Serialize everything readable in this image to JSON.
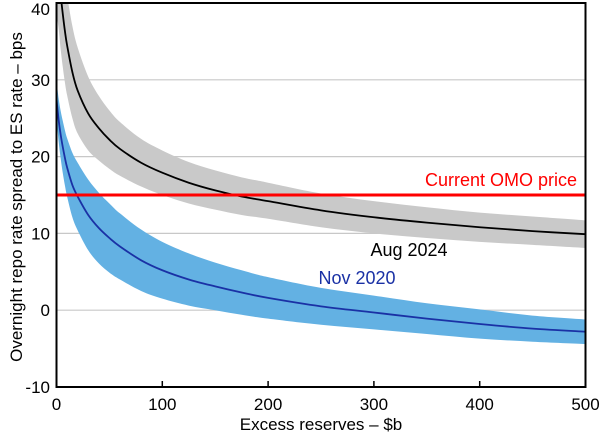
{
  "chart_data": {
    "type": "line",
    "title": "",
    "xlabel": "Excess reserves – $b",
    "ylabel": "Overnight repo rate spread to ES rate – bps",
    "xlim": [
      0,
      500
    ],
    "ylim": [
      -10,
      40
    ],
    "x_ticks": [
      0,
      100,
      200,
      300,
      400,
      500
    ],
    "y_ticks": [
      -10,
      0,
      10,
      20,
      30,
      40
    ],
    "grid": "horizontal",
    "grid_color": "#C8C8C8",
    "frame_color": "#000000",
    "background_color": "#FFFFFF",
    "legend_position": "inline-labels",
    "reference_line": {
      "label": "Current OMO price",
      "value": 15,
      "color": "#FF0000"
    },
    "series": [
      {
        "name": "Aug 2024",
        "line_color": "#000000",
        "band_color": "#C9C9C9",
        "x": [
          0,
          2,
          4,
          6,
          8,
          10,
          15,
          20,
          30,
          40,
          50,
          60,
          80,
          100,
          125,
          150,
          175,
          200,
          250,
          300,
          350,
          400,
          450,
          500
        ],
        "values": [
          46,
          44,
          41,
          38.5,
          36.3,
          34.5,
          31,
          28.6,
          25.6,
          23.7,
          22.2,
          21,
          19.2,
          17.9,
          16.6,
          15.6,
          14.8,
          14.2,
          13.0,
          12.1,
          11.4,
          10.8,
          10.3,
          9.9
        ],
        "band_upper": [
          53.5,
          51.3,
          48.1,
          45.4,
          43.0,
          41.0,
          37.0,
          34.2,
          30.4,
          27.9,
          26.0,
          24.5,
          22.3,
          20.8,
          19.3,
          18.2,
          17.3,
          16.6,
          15.2,
          14.2,
          13.4,
          12.7,
          12.2,
          11.7
        ],
        "band_lower": [
          38.5,
          36.7,
          33.9,
          31.6,
          29.6,
          28.0,
          25.0,
          23.0,
          20.8,
          19.5,
          18.4,
          17.5,
          16.1,
          15.0,
          13.9,
          13.1,
          12.4,
          11.9,
          10.8,
          10.0,
          9.4,
          8.9,
          8.5,
          8.1
        ]
      },
      {
        "name": "Nov 2020",
        "line_color": "#1A31A5",
        "band_color": "#63B1E3",
        "x": [
          0,
          2,
          4,
          6,
          8,
          10,
          15,
          20,
          30,
          40,
          50,
          60,
          80,
          100,
          125,
          150,
          175,
          200,
          250,
          300,
          350,
          400,
          450,
          500
        ],
        "values": [
          27.5,
          24.8,
          22.8,
          21.2,
          19.8,
          18.6,
          16.3,
          14.8,
          12.4,
          10.7,
          9.4,
          8.3,
          6.5,
          5.2,
          4.0,
          3.1,
          2.3,
          1.6,
          0.5,
          -0.3,
          -1.1,
          -1.8,
          -2.4,
          -2.8
        ],
        "band_upper": [
          30.0,
          27.6,
          25.9,
          24.6,
          23.4,
          22.4,
          20.5,
          19.2,
          17.0,
          15.3,
          13.9,
          12.6,
          10.5,
          8.9,
          7.4,
          6.2,
          5.2,
          4.3,
          2.9,
          1.9,
          0.9,
          0.1,
          -0.7,
          -1.2
        ],
        "band_lower": [
          25.0,
          22.0,
          19.7,
          17.8,
          16.2,
          14.8,
          12.1,
          10.4,
          7.8,
          6.1,
          4.9,
          4.0,
          2.5,
          1.5,
          0.6,
          0.0,
          -0.6,
          -1.1,
          -1.9,
          -2.5,
          -3.1,
          -3.7,
          -4.1,
          -4.4
        ]
      }
    ]
  }
}
